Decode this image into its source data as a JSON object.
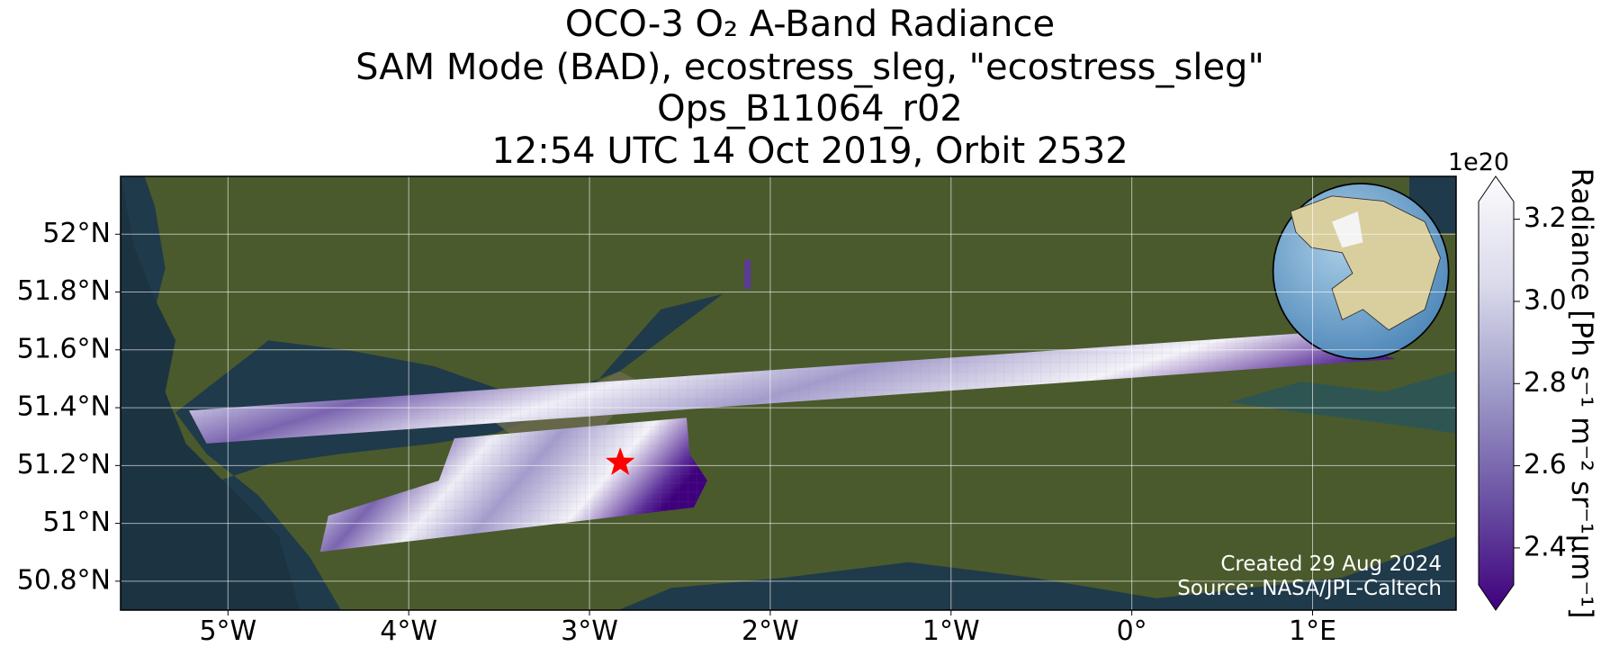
{
  "title_lines": [
    "OCO-3 O₂ A-Band Radiance",
    "SAM Mode (BAD), ecostress_sleg, \"ecostress_sleg\"",
    "Ops_B11064_r02",
    "12:54 UTC 14 Oct 2019, Orbit 2532"
  ],
  "map": {
    "xlim": [
      -5.594,
      1.794
    ],
    "ylim": [
      50.7,
      52.2
    ],
    "xticks": [
      {
        "value": -5,
        "label": "5°W"
      },
      {
        "value": -4,
        "label": "4°W"
      },
      {
        "value": -3,
        "label": "3°W"
      },
      {
        "value": -2,
        "label": "2°W"
      },
      {
        "value": -1,
        "label": "1°W"
      },
      {
        "value": 0,
        "label": "0°"
      },
      {
        "value": 1,
        "label": "1°E"
      }
    ],
    "yticks": [
      {
        "value": 50.8,
        "label": "50.8°N"
      },
      {
        "value": 51,
        "label": "51°N"
      },
      {
        "value": 51.2,
        "label": "51.2°N"
      },
      {
        "value": 51.4,
        "label": "51.4°N"
      },
      {
        "value": 51.6,
        "label": "51.6°N"
      },
      {
        "value": 51.8,
        "label": "51.8°N"
      },
      {
        "value": 52,
        "label": "52°N"
      }
    ],
    "grid": true,
    "target": {
      "lon": -2.83,
      "lat": 51.21,
      "color": "#ff0000"
    }
  },
  "colorbar": {
    "label": "Radiance [Ph s⁻¹ m⁻² sr⁻¹μm⁻¹]",
    "exponent": "1e20",
    "clim": [
      2.31,
      3.243
    ],
    "ticks": [
      2.4,
      2.6,
      2.8,
      {
        "value": 3,
        "label": "3.0"
      },
      3.2
    ],
    "cmap_colors": [
      "#3f007d",
      "#6a51a3",
      "#9e9ac8",
      "#dadaeb",
      "#fcfbfd"
    ]
  },
  "credits": [
    "Created 29 Aug 2024",
    "Source: NASA/JPL-Caltech"
  ]
}
